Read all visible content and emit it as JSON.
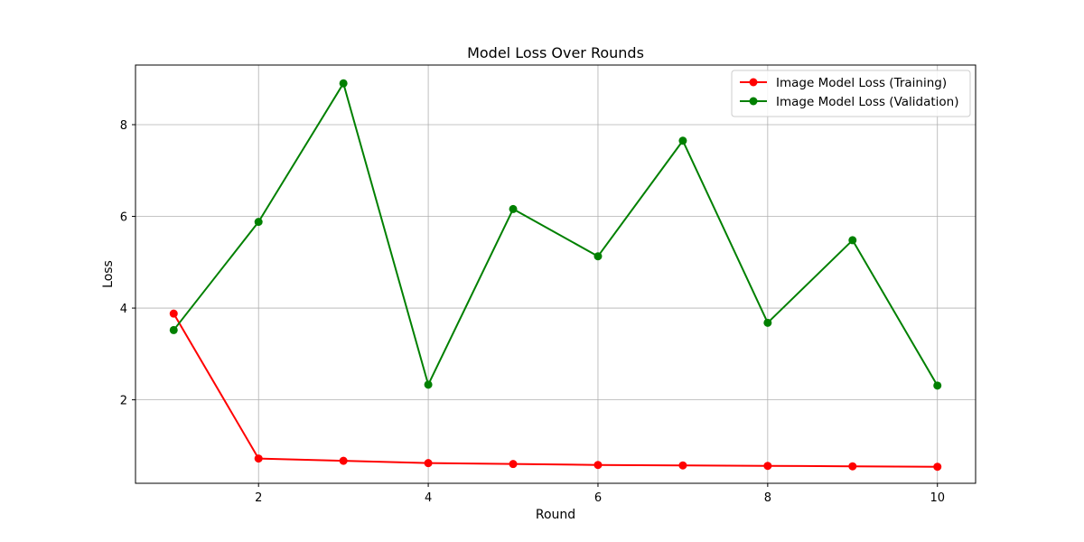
{
  "chart_data": {
    "type": "line",
    "title": "Model Loss Over Rounds",
    "xlabel": "Round",
    "ylabel": "Loss",
    "xlim": [
      0.55,
      10.45
    ],
    "ylim": [
      0.18,
      9.3
    ],
    "x_ticks": [
      2,
      4,
      6,
      8,
      10
    ],
    "y_ticks": [
      2,
      4,
      6,
      8
    ],
    "grid": true,
    "legend_position": "top-right",
    "x": [
      1,
      2,
      3,
      4,
      5,
      6,
      7,
      8,
      9,
      10
    ],
    "series": [
      {
        "name": "Image Model Loss (Training)",
        "color": "#ff0000",
        "marker": "circle",
        "values": [
          3.88,
          0.72,
          0.67,
          0.62,
          0.6,
          0.58,
          0.57,
          0.56,
          0.55,
          0.54
        ]
      },
      {
        "name": "Image Model Loss (Validation)",
        "color": "#008000",
        "marker": "circle",
        "values": [
          3.52,
          5.88,
          8.9,
          2.33,
          6.16,
          5.13,
          7.65,
          3.68,
          5.48,
          2.31
        ]
      }
    ]
  }
}
